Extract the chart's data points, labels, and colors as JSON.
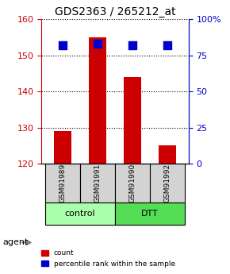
{
  "title": "GDS2363 / 265212_at",
  "samples": [
    "GSM91989",
    "GSM91991",
    "GSM91990",
    "GSM91992"
  ],
  "groups": [
    "control",
    "control",
    "DTT",
    "DTT"
  ],
  "counts": [
    129,
    155,
    144,
    125
  ],
  "percentiles": [
    82,
    83,
    82,
    82
  ],
  "ylim_left": [
    120,
    160
  ],
  "ylim_right": [
    0,
    100
  ],
  "yticks_left": [
    120,
    130,
    140,
    150,
    160
  ],
  "yticks_right": [
    0,
    25,
    50,
    75,
    100
  ],
  "yticklabels_right": [
    "0",
    "25",
    "50",
    "75",
    "100%"
  ],
  "bar_color": "#cc0000",
  "dot_color": "#0000cc",
  "group_colors": {
    "control": "#aaffaa",
    "DTT": "#55dd55"
  },
  "label_color_left": "#cc0000",
  "label_color_right": "#0000cc",
  "grid_color": "#000000",
  "bar_width": 0.5,
  "dot_size": 60,
  "legend_count_label": "count",
  "legend_pct_label": "percentile rank within the sample",
  "agent_label": "agent",
  "xlabel_rotation": -90
}
